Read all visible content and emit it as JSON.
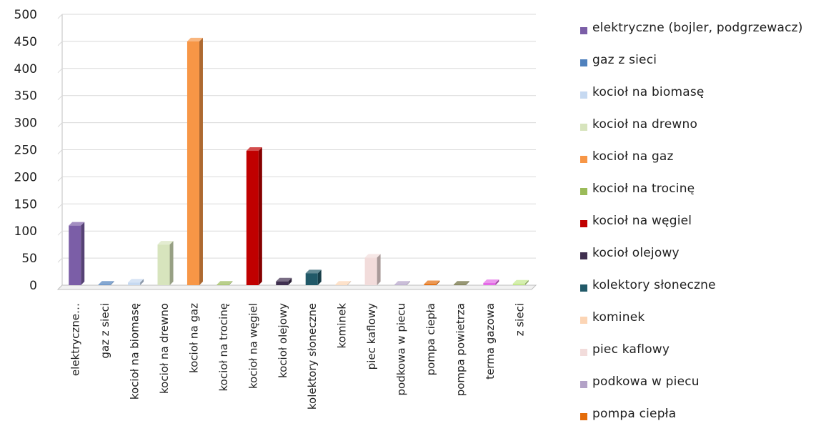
{
  "chart_data": {
    "type": "bar",
    "categories": [
      "elektryczne (bojler, podgrzewacz)",
      "gaz z sieci",
      "kocioł na biomasę",
      "kocioł na drewno",
      "kocioł na gaz",
      "kocioł na trocinę",
      "kocioł na węgiel",
      "kocioł olejowy",
      "kolektory słoneczne",
      "kominek",
      "piec kaflowy",
      "podkowa w piecu",
      "pompa ciepła",
      "pompa powietrza",
      "terma gazowa",
      "z sieci"
    ],
    "category_axis_labels": [
      "elektryczne…",
      "gaz z sieci",
      "kocioł na biomasę",
      "kocioł na drewno",
      "kocioł na gaz",
      "kocioł na trocinę",
      "kocioł na węgiel",
      "kocioł olejowy",
      "kolektory słoneczne",
      "kominek",
      "piec kaflowy",
      "podkowa w piecu",
      "pompa ciepła",
      "pompa powietrza",
      "terma gazowa",
      "z sieci"
    ],
    "values": [
      110,
      1,
      5,
      75,
      450,
      1,
      248,
      7,
      22,
      1,
      51,
      1,
      2,
      1,
      4,
      3
    ],
    "colors": [
      "#7b5ea7",
      "#4f81bd",
      "#c6d9f1",
      "#d7e4bd",
      "#f79646",
      "#9bbb59",
      "#c00000",
      "#3f2f4f",
      "#215968",
      "#fcd5b5",
      "#f2dcdb",
      "#b3a2c7",
      "#e46c0a",
      "#6b6b3a",
      "#e46ae6",
      "#c3e88d"
    ],
    "y_ticks": [
      "0",
      "50",
      "100",
      "150",
      "200",
      "250",
      "300",
      "350",
      "400",
      "450",
      "500"
    ],
    "ylim": [
      0,
      500
    ],
    "grid": true,
    "legend_position": "right",
    "legend": [
      "elektryczne (bojler, podgrzewacz)",
      "gaz z sieci",
      "kocioł na biomasę",
      "kocioł na drewno",
      "kocioł na gaz",
      "kocioł na trocinę",
      "kocioł na węgiel",
      "kocioł olejowy",
      "kolektory słoneczne",
      "kominek",
      "piec kaflowy",
      "podkowa w piecu",
      "pompa ciepła"
    ]
  }
}
